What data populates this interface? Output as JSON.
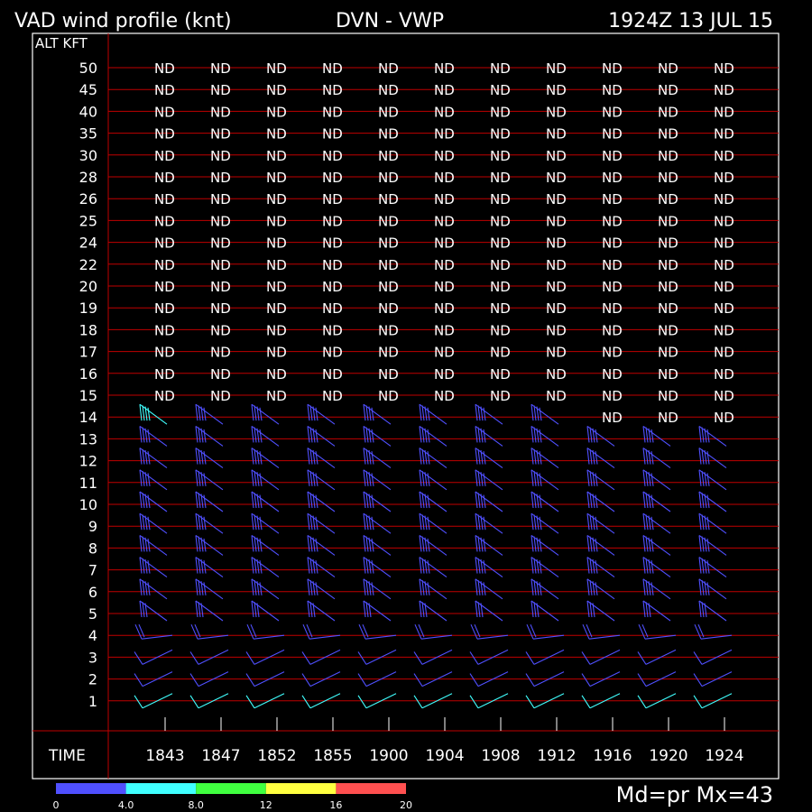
{
  "header": {
    "title": "VAD wind profile (knt)",
    "station": "DVN - VWP",
    "datetime": "1924Z 13 JUL 15"
  },
  "axis": {
    "y_label": "ALT KFT",
    "x_label": "TIME",
    "no_data_label": "ND"
  },
  "footer": {
    "stats": "Md=pr Mx=43"
  },
  "colors": {
    "background": "#000000",
    "frame": "#ffffff",
    "gridline": "#c00000",
    "text": "#ffffff"
  },
  "chart_data": {
    "type": "wind-profile",
    "altitudes_kft": [
      "50",
      "45",
      "40",
      "35",
      "30",
      "28",
      "26",
      "25",
      "24",
      "22",
      "20",
      "19",
      "18",
      "17",
      "16",
      "15",
      "14",
      "13",
      "12",
      "11",
      "10",
      "9",
      "8",
      "7",
      "6",
      "5",
      "4",
      "3",
      "2",
      "1"
    ],
    "times": [
      "1843",
      "1847",
      "1852",
      "1855",
      "1900",
      "1904",
      "1908",
      "1912",
      "1916",
      "1920",
      "1924"
    ],
    "top_of_data_kft": [
      "14",
      "14",
      "14",
      "14",
      "14",
      "14",
      "14",
      "14",
      "13",
      "13",
      "13"
    ],
    "barbs": {
      "description": "per-level wind barbs; speeds in knots, direction deg",
      "levels": [
        {
          "alt": "14",
          "dir": 300,
          "spd": 40
        },
        {
          "alt": "13",
          "dir": 300,
          "spd": 40
        },
        {
          "alt": "12",
          "dir": 300,
          "spd": 40
        },
        {
          "alt": "11",
          "dir": 295,
          "spd": 40
        },
        {
          "alt": "10",
          "dir": 295,
          "spd": 40
        },
        {
          "alt": "9",
          "dir": 295,
          "spd": 40
        },
        {
          "alt": "8",
          "dir": 295,
          "spd": 40
        },
        {
          "alt": "7",
          "dir": 295,
          "spd": 35
        },
        {
          "alt": "6",
          "dir": 300,
          "spd": 35
        },
        {
          "alt": "5",
          "dir": 300,
          "spd": 30
        },
        {
          "alt": "4",
          "dir": 270,
          "spd": 20
        },
        {
          "alt": "3",
          "dir": 240,
          "spd": 15
        },
        {
          "alt": "2",
          "dir": 240,
          "spd": 15
        },
        {
          "alt": "1",
          "dir": 225,
          "spd": 10
        }
      ]
    },
    "colorbar": {
      "ticks": [
        "0",
        "4.0",
        "8.0",
        "12",
        "16",
        "20"
      ],
      "colors": [
        "#5050ff",
        "#40ffff",
        "#40ff40",
        "#ffff40",
        "#ff5050"
      ]
    }
  }
}
